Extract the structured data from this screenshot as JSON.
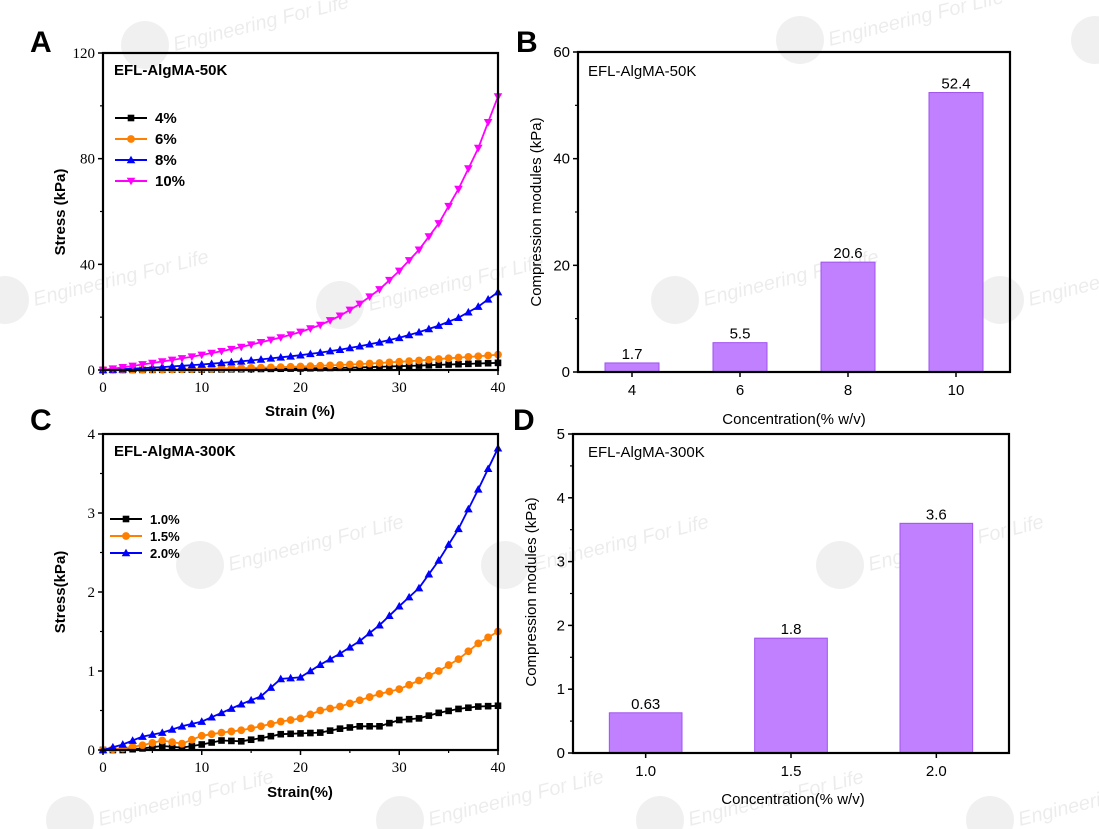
{
  "figure": {
    "watermark": {
      "logo": "EFL",
      "text": "Engineering For Life"
    }
  },
  "chart_data": [
    {
      "panel": "A",
      "type": "line",
      "inset_title": "EFL-AlgMA-50K",
      "xlabel": "Strain (%)",
      "ylabel": "Stress (kPa)",
      "xlim": [
        0,
        40
      ],
      "ylim": [
        0,
        120
      ],
      "xticks": [
        0,
        10,
        20,
        30,
        40
      ],
      "yticks": [
        0,
        40,
        80,
        120
      ],
      "grid": false,
      "legend_position": "top-left",
      "series": [
        {
          "name": "4%",
          "color": "#000000",
          "marker": "square",
          "x": [
            0,
            2,
            4,
            6,
            8,
            10,
            12,
            14,
            16,
            18,
            20,
            22,
            24,
            26,
            28,
            30,
            32,
            34,
            36,
            38,
            40
          ],
          "y": [
            0,
            0.02,
            0.05,
            0.09,
            0.13,
            0.18,
            0.24,
            0.31,
            0.39,
            0.48,
            0.58,
            0.7,
            0.84,
            1.0,
            1.2,
            1.42,
            1.67,
            1.95,
            2.2,
            2.45,
            2.7
          ]
        },
        {
          "name": "6%",
          "color": "#FF8000",
          "marker": "circle",
          "x": [
            0,
            2,
            4,
            6,
            8,
            10,
            12,
            14,
            16,
            18,
            20,
            22,
            24,
            26,
            28,
            30,
            32,
            34,
            36,
            38,
            40
          ],
          "y": [
            0,
            0.05,
            0.12,
            0.2,
            0.3,
            0.42,
            0.56,
            0.72,
            0.9,
            1.1,
            1.33,
            1.6,
            1.9,
            2.25,
            2.65,
            3.1,
            3.6,
            4.15,
            4.7,
            5.2,
            5.8
          ]
        },
        {
          "name": "8%",
          "color": "#0000FF",
          "marker": "triangle-up",
          "x": [
            0,
            2,
            4,
            6,
            8,
            10,
            12,
            14,
            16,
            18,
            20,
            22,
            24,
            26,
            28,
            30,
            32,
            34,
            36,
            38,
            40
          ],
          "y": [
            0,
            0.3,
            0.7,
            1.1,
            1.6,
            2.1,
            2.7,
            3.3,
            4.0,
            4.8,
            5.6,
            6.6,
            7.7,
            9.0,
            10.5,
            12.2,
            14.3,
            16.8,
            19.8,
            24.0,
            29.5
          ]
        },
        {
          "name": "10%",
          "color": "#FF00FF",
          "marker": "triangle-down",
          "x": [
            0,
            2,
            4,
            6,
            8,
            10,
            12,
            14,
            16,
            18,
            20,
            22,
            24,
            26,
            28,
            30,
            32,
            34,
            36,
            38,
            40
          ],
          "y": [
            0,
            1.0,
            2.1,
            3.2,
            4.4,
            5.7,
            7.1,
            8.7,
            10.5,
            12.3,
            14.4,
            17.0,
            20.5,
            25.0,
            30.5,
            37.5,
            45.5,
            55.5,
            68.5,
            84.0,
            103.5
          ]
        }
      ]
    },
    {
      "panel": "B",
      "type": "bar",
      "inset_title": "EFL-AlgMA-50K",
      "xlabel": "Concentration(% w/v)",
      "ylabel": "Compression modules (kPa)",
      "categories": [
        "4",
        "6",
        "8",
        "10"
      ],
      "values": [
        1.7,
        5.5,
        20.6,
        52.4
      ],
      "data_labels": [
        "1.7",
        "5.5",
        "20.6",
        "52.4"
      ],
      "ylim": [
        0,
        60
      ],
      "yticks": [
        0,
        20,
        40,
        60
      ],
      "bar_color": "#C080FF",
      "bar_edge_color": "#A050F0",
      "grid": false
    },
    {
      "panel": "C",
      "type": "line",
      "inset_title": "EFL-AlgMA-300K",
      "xlabel": "Strain(%)",
      "ylabel": "Stress(kPa)",
      "xlim": [
        0,
        40
      ],
      "ylim": [
        0,
        4
      ],
      "xticks": [
        0,
        10,
        20,
        30,
        40
      ],
      "yticks": [
        0,
        1,
        2,
        3,
        4
      ],
      "grid": false,
      "legend_position": "upper-left",
      "series": [
        {
          "name": "1.0%",
          "color": "#000000",
          "marker": "square",
          "x": [
            0,
            2,
            4,
            6,
            8,
            10,
            12,
            14,
            16,
            18,
            20,
            22,
            24,
            26,
            28,
            30,
            32,
            34,
            36,
            38,
            40
          ],
          "y": [
            0,
            0.0,
            0.02,
            0.05,
            0.03,
            0.07,
            0.12,
            0.11,
            0.15,
            0.2,
            0.21,
            0.22,
            0.27,
            0.3,
            0.3,
            0.38,
            0.4,
            0.47,
            0.52,
            0.55,
            0.56
          ]
        },
        {
          "name": "1.5%",
          "color": "#FF8000",
          "marker": "circle",
          "x": [
            0,
            2,
            4,
            6,
            8,
            10,
            12,
            14,
            16,
            18,
            20,
            22,
            24,
            26,
            28,
            30,
            32,
            34,
            36,
            38,
            40
          ],
          "y": [
            0,
            0.02,
            0.06,
            0.12,
            0.08,
            0.18,
            0.22,
            0.25,
            0.3,
            0.36,
            0.4,
            0.5,
            0.55,
            0.63,
            0.71,
            0.77,
            0.88,
            1.0,
            1.15,
            1.35,
            1.5
          ]
        },
        {
          "name": "2.0%",
          "color": "#0000FF",
          "marker": "triangle-up",
          "x": [
            0,
            2,
            4,
            6,
            8,
            10,
            12,
            14,
            16,
            18,
            20,
            22,
            24,
            26,
            28,
            30,
            32,
            34,
            36,
            38,
            40
          ],
          "y": [
            0,
            0.07,
            0.17,
            0.22,
            0.3,
            0.36,
            0.47,
            0.58,
            0.68,
            0.9,
            0.92,
            1.08,
            1.22,
            1.38,
            1.58,
            1.82,
            2.05,
            2.4,
            2.8,
            3.3,
            3.82
          ]
        }
      ]
    },
    {
      "panel": "D",
      "type": "bar",
      "inset_title": "EFL-AlgMA-300K",
      "xlabel": "Concentration(% w/v)",
      "ylabel": "Compression modules (kPa)",
      "categories": [
        "1.0",
        "1.5",
        "2.0"
      ],
      "values": [
        0.63,
        1.8,
        3.6
      ],
      "data_labels": [
        "0.63",
        "1.8",
        "3.6"
      ],
      "ylim": [
        0,
        5
      ],
      "yticks": [
        0,
        1,
        2,
        3,
        4,
        5
      ],
      "bar_color": "#C080FF",
      "bar_edge_color": "#A050F0",
      "grid": false
    }
  ]
}
